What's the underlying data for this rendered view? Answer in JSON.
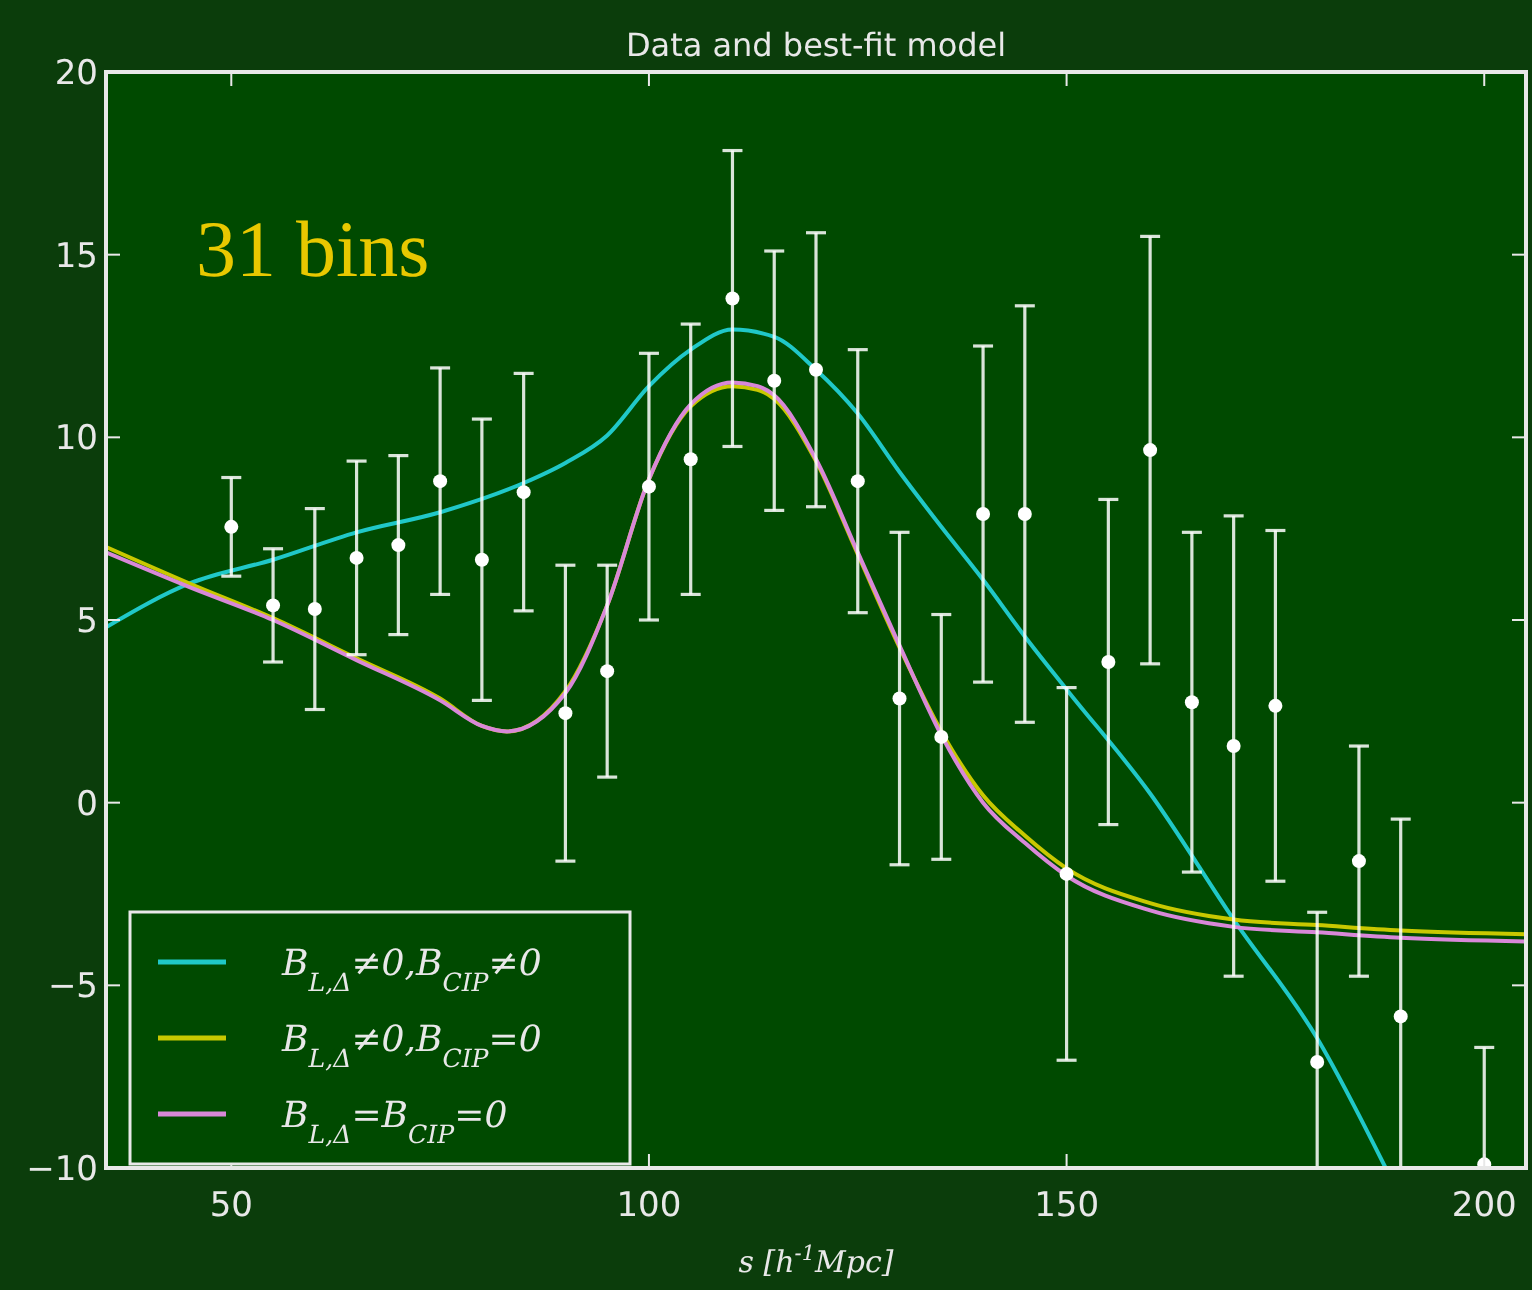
{
  "chart_data": {
    "type": "scatter",
    "title": "Data and best-fit model",
    "xlabel": "s  [h$^{-1}$Mpc]",
    "annotations": [
      "31 bins"
    ],
    "x": [
      50,
      55,
      60,
      65,
      70,
      75,
      80,
      85,
      90,
      95,
      100,
      105,
      110,
      115,
      120,
      125,
      130,
      135,
      140,
      145,
      150,
      155,
      160,
      165,
      170,
      175,
      180,
      185,
      190,
      200
    ],
    "xlim": [
      35,
      205
    ],
    "xticks": [
      50,
      100,
      150,
      200
    ],
    "ylim": [
      -10,
      20
    ],
    "yticks": [
      -10,
      -5,
      0,
      5,
      10,
      15,
      20
    ],
    "grid": false,
    "legend": "bottom left",
    "marker": "circle",
    "series": [
      {
        "color": "#ffffff",
        "values": [
          7.55,
          5.4,
          5.3,
          6.7,
          7.05,
          8.8,
          6.65,
          8.5,
          2.45,
          3.6,
          8.65,
          9.4,
          13.8,
          11.55,
          11.85,
          8.8,
          2.85,
          1.8,
          7.9,
          7.9,
          -1.95,
          3.85,
          9.65,
          2.75,
          1.55,
          2.65,
          -7.1,
          -1.6,
          -5.85,
          -9.9
        ],
        "errors": [
          1.35,
          1.55,
          2.75,
          2.65,
          2.45,
          3.1,
          3.85,
          3.25,
          4.05,
          2.9,
          3.65,
          3.7,
          4.05,
          3.55,
          3.75,
          3.6,
          4.55,
          3.35,
          4.6,
          5.7,
          5.1,
          4.45,
          5.85,
          4.65,
          6.3,
          4.8,
          [
            -10,
            -3.0
          ],
          3.15,
          [
            -10,
            -0.45
          ],
          [
            -10,
            -6.7
          ]
        ]
      },
      {
        "type": "line",
        "name": "B$_{L,Δ}$≠0,B$_{CIP}$≠0",
        "color": "#20c8c8",
        "marker": "none",
        "line_style": "solid",
        "x": [
          35,
          45,
          55,
          65,
          75,
          85,
          90,
          95,
          100,
          105,
          110,
          115,
          120,
          125,
          130,
          135,
          140,
          145,
          150,
          160,
          170,
          180,
          188.2
        ],
        "values": [
          4.8,
          6.0,
          6.65,
          7.4,
          7.95,
          8.75,
          9.3,
          10.05,
          11.4,
          12.4,
          12.95,
          12.75,
          11.85,
          10.65,
          9.05,
          7.55,
          6.1,
          4.55,
          3.1,
          0.25,
          -3.2,
          -6.45,
          -10
        ]
      },
      {
        "type": "line",
        "name": "B$_{L,Δ}$≠0,B$_{CIP}$=0",
        "color": "#c8c800",
        "marker": "none",
        "line_style": "solid",
        "x": [
          35,
          45,
          55,
          65,
          75,
          80,
          83,
          90,
          95,
          100,
          105,
          110,
          113,
          115,
          120,
          125,
          130,
          135,
          140,
          145,
          150,
          160,
          170,
          180,
          190,
          205
        ],
        "values": [
          7.0,
          6.0,
          5.05,
          3.95,
          2.85,
          2.1,
          1.95,
          3.05,
          5.4,
          8.85,
          10.85,
          11.4,
          11.3,
          11.05,
          9.35,
          6.8,
          4.25,
          1.95,
          0.2,
          -0.9,
          -1.8,
          -2.75,
          -3.2,
          -3.35,
          -3.5,
          -3.6
        ]
      },
      {
        "type": "line",
        "name": "B$_{L,Δ}$=B$_{CIP}$=0",
        "color": "#d888d8",
        "marker": "none",
        "line_style": "solid",
        "x": [
          35,
          45,
          55,
          65,
          75,
          80,
          83,
          90,
          95,
          100,
          105,
          110,
          113,
          115,
          120,
          125,
          130,
          135,
          140,
          145,
          150,
          160,
          170,
          180,
          190,
          205
        ],
        "values": [
          6.85,
          5.9,
          5.0,
          3.9,
          2.8,
          2.1,
          1.95,
          3.0,
          5.4,
          8.85,
          10.9,
          11.5,
          11.4,
          11.15,
          9.4,
          6.85,
          4.3,
          1.85,
          0.0,
          -1.1,
          -2.0,
          -2.95,
          -3.4,
          -3.55,
          -3.7,
          -3.8
        ]
      }
    ]
  }
}
